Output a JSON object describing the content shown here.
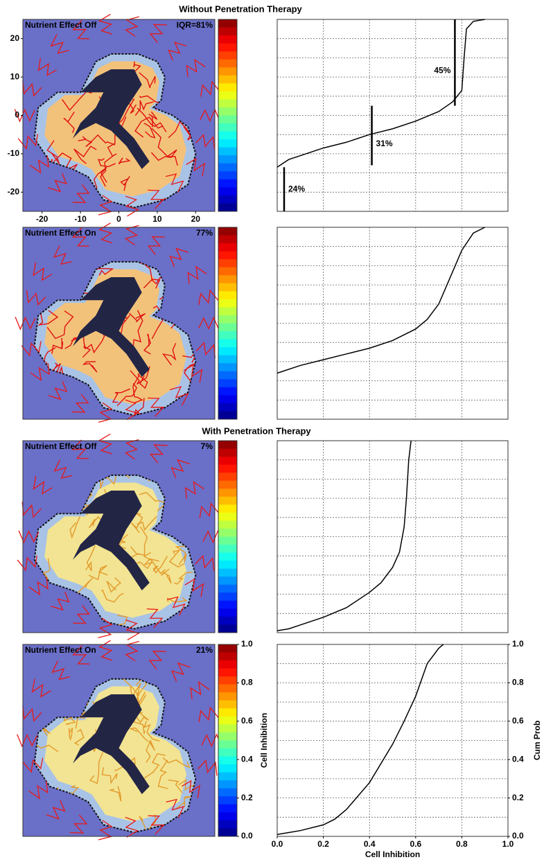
{
  "headings": [
    "Without Penetration Therapy",
    "With Penetration Therapy"
  ],
  "panels": [
    {
      "label": "Nutrient Effect Off",
      "value_text": "IQR=81%"
    },
    {
      "label": "Nutrient Effect On",
      "value_text": "77%"
    },
    {
      "label": "Nutrient Effect Off",
      "value_text": "7%"
    },
    {
      "label": "Nutrient Effect On",
      "value_text": "21%"
    }
  ],
  "map_axes": {
    "xlim": [
      -25,
      25
    ],
    "ylim": [
      -25,
      25
    ],
    "xticks": [
      -20,
      -10,
      0,
      10,
      20
    ],
    "yticks": [
      20,
      10,
      0,
      -10,
      -20
    ]
  },
  "colorbar": {
    "label": "Cell Inhibition",
    "lim": [
      0,
      1
    ],
    "ticks": [
      {
        "value": 0,
        "label": "0.0"
      },
      {
        "value": 0.2,
        "label": "0.2"
      },
      {
        "value": 0.4,
        "label": "0.4"
      },
      {
        "value": 0.6,
        "label": "0.6"
      },
      {
        "value": 0.8,
        "label": "0.8"
      },
      {
        "value": 1,
        "label": "1.0"
      }
    ]
  },
  "chart_data": [
    {
      "type": "line",
      "xlim": [
        0,
        1
      ],
      "ylim": [
        0,
        1
      ],
      "xgrid": [
        0.2,
        0.4,
        0.6,
        0.8
      ],
      "ygrid": [
        0.1,
        0.2,
        0.3,
        0.4,
        0.5,
        0.6,
        0.7,
        0.8,
        0.9
      ],
      "x": [
        0,
        0.05,
        0.1,
        0.2,
        0.3,
        0.4,
        0.5,
        0.6,
        0.7,
        0.76,
        0.8,
        0.81,
        0.82,
        0.85,
        0.9
      ],
      "values": [
        0.23,
        0.27,
        0.29,
        0.33,
        0.36,
        0.4,
        0.43,
        0.47,
        0.52,
        0.57,
        0.63,
        0.8,
        0.95,
        0.99,
        1.0
      ],
      "markers": [
        {
          "x": 0.77,
          "y": [
            0.55,
            1.0
          ],
          "label": "45%"
        },
        {
          "x": 0.41,
          "y": [
            0.24,
            0.55
          ],
          "label": "31%"
        },
        {
          "x": 0.03,
          "y": [
            0,
            0.23
          ],
          "label": "24%"
        }
      ]
    },
    {
      "type": "line",
      "xlim": [
        0,
        1
      ],
      "ylim": [
        0,
        1
      ],
      "xgrid": [
        0.2,
        0.4,
        0.6,
        0.8
      ],
      "ygrid": [
        0.1,
        0.2,
        0.3,
        0.4,
        0.5,
        0.6,
        0.7,
        0.8,
        0.9
      ],
      "x": [
        0,
        0.1,
        0.2,
        0.3,
        0.4,
        0.5,
        0.6,
        0.65,
        0.7,
        0.75,
        0.8,
        0.85,
        0.9
      ],
      "values": [
        0.24,
        0.28,
        0.31,
        0.34,
        0.37,
        0.41,
        0.47,
        0.52,
        0.6,
        0.74,
        0.88,
        0.97,
        1.0
      ]
    },
    {
      "type": "line",
      "xlim": [
        0,
        1
      ],
      "ylim": [
        0,
        1
      ],
      "xgrid": [
        0.2,
        0.4,
        0.6,
        0.8
      ],
      "ygrid": [
        0.1,
        0.2,
        0.3,
        0.4,
        0.5,
        0.6,
        0.7,
        0.8,
        0.9
      ],
      "x": [
        0,
        0.05,
        0.1,
        0.2,
        0.3,
        0.4,
        0.45,
        0.5,
        0.53,
        0.55,
        0.56,
        0.57,
        0.58
      ],
      "values": [
        0.01,
        0.02,
        0.04,
        0.08,
        0.13,
        0.21,
        0.26,
        0.34,
        0.42,
        0.55,
        0.7,
        0.9,
        1.0
      ]
    },
    {
      "type": "line",
      "xlim": [
        0,
        1
      ],
      "ylim": [
        0,
        1
      ],
      "xgrid": [
        0.2,
        0.4,
        0.6,
        0.8
      ],
      "ygrid": [
        0.1,
        0.2,
        0.3,
        0.4,
        0.5,
        0.6,
        0.7,
        0.8,
        0.9
      ],
      "xlabel": "Cell Inhibition",
      "ylabel": "Cum Prob",
      "xticks": [
        {
          "value": 0,
          "label": "0.0"
        },
        {
          "value": 0.2,
          "label": "0.2"
        },
        {
          "value": 0.4,
          "label": "0.4"
        },
        {
          "value": 0.6,
          "label": "0.6"
        },
        {
          "value": 0.8,
          "label": "0.8"
        },
        {
          "value": 1,
          "label": "1.0"
        }
      ],
      "yticks": [
        {
          "value": 0,
          "label": "0.0"
        },
        {
          "value": 0.2,
          "label": "0.2"
        },
        {
          "value": 0.4,
          "label": "0.4"
        },
        {
          "value": 0.6,
          "label": "0.6"
        },
        {
          "value": 0.8,
          "label": "0.8"
        },
        {
          "value": 1,
          "label": "1.0"
        }
      ],
      "x": [
        0,
        0.05,
        0.1,
        0.2,
        0.25,
        0.3,
        0.4,
        0.5,
        0.55,
        0.6,
        0.65,
        0.7,
        0.72
      ],
      "values": [
        0.01,
        0.02,
        0.03,
        0.06,
        0.09,
        0.14,
        0.28,
        0.48,
        0.6,
        0.73,
        0.9,
        0.98,
        1.0
      ]
    }
  ]
}
